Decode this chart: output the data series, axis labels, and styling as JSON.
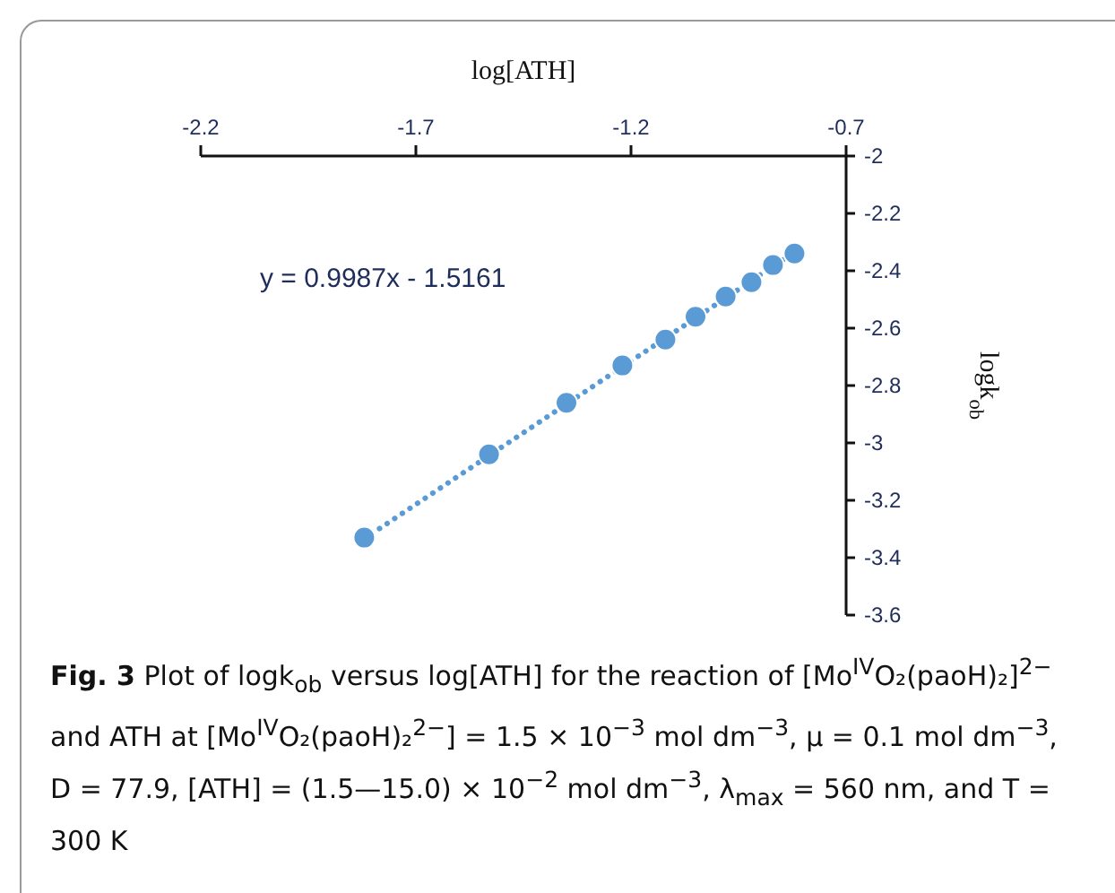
{
  "chart_data": {
    "type": "scatter",
    "xlabel": "log[ATH]",
    "ylabel": "logk$_{ob}$",
    "xlim": [
      -2.2,
      -0.7
    ],
    "xticks": [
      -2.2,
      -1.7,
      -1.2,
      -0.7
    ],
    "ylim": [
      -3.6,
      -2
    ],
    "yticks": [
      -2,
      -2.2,
      -2.4,
      -2.6,
      -2.8,
      -3,
      -3.2,
      -3.4,
      -3.6
    ],
    "grid": false,
    "series": [
      {
        "color": "#5b9bd5",
        "marker": "circle",
        "x": [
          -1.82,
          -1.53,
          -1.35,
          -1.22,
          -1.12,
          -1.05,
          -0.98,
          -0.92,
          -0.87,
          -0.82
        ],
        "values": [
          -3.33,
          -3.04,
          -2.86,
          -2.73,
          -2.64,
          -2.56,
          -2.49,
          -2.44,
          -2.38,
          -2.34
        ]
      },
      {
        "type": "line",
        "color": "#5b9bd5",
        "line_style": "dotted",
        "marker": "none",
        "x": [
          -1.82,
          -0.82
        ],
        "values": [
          -3.334,
          -2.335
        ]
      }
    ],
    "annotations": [
      "y = 0.9987x - 1.5161",
      "Fig. 3",
      "Plot of logk$_{ob}$ versus log[ATH] for the reaction of [Mo$^{IV}$O₂(paoH)₂]$^{2−}$ and ATH at [Mo$^{IV}$O₂(paoH)₂$^{2−}$] = 1.5 × 10$^{−3}$ mol dm$^{−3}$, μ = 0.1 mol dm$^{−3}$, D = 77.9, [ATH] = (1.5—15.0) × 10$^{−2}$ mol dm$^{−3}$, λ$_{max}$ = 560 nm, and T = 300 K"
    ]
  }
}
